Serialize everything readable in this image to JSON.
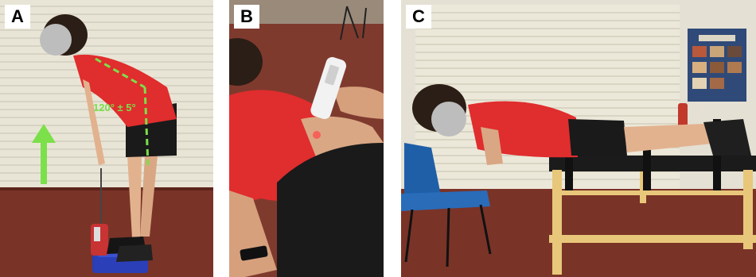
{
  "panels": [
    {
      "letter": "A"
    },
    {
      "letter": "B"
    },
    {
      "letter": "C"
    }
  ],
  "panel_a": {
    "angle_annotation": "120° ± 5°"
  },
  "colors": {
    "floor": "#7a3327",
    "shutter": "#e9e5d6",
    "shirt": "#e02d2d",
    "shorts": "#1a1a1a",
    "annotation_green": "#7be04a",
    "bench": "#e8c77a"
  },
  "icons": {
    "arrow": "up-arrow-icon",
    "face_blur": "face-blur-icon"
  }
}
